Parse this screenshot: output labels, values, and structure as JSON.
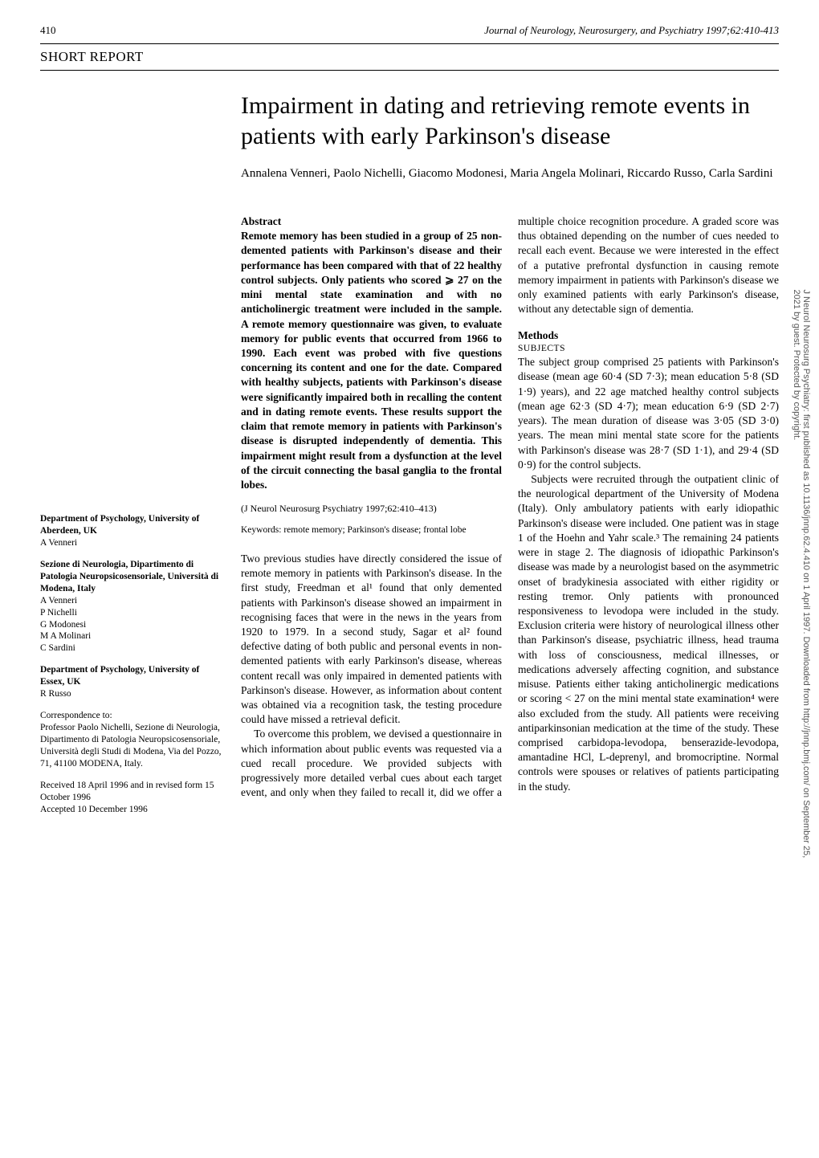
{
  "page_number": "410",
  "journal_citation": "Journal of Neurology, Neurosurgery, and Psychiatry 1997;62:410-413",
  "short_report": "SHORT REPORT",
  "title": "Impairment in dating and retrieving remote events in patients with early Parkinson's disease",
  "authors": "Annalena Venneri, Paolo Nichelli, Giacomo Modonesi, Maria Angela Molinari, Riccardo Russo, Carla Sardini",
  "abstract_head": "Abstract",
  "abstract_body": "Remote memory has been studied in a group of 25 non-demented patients with Parkinson's disease and their performance has been compared with that of 22 healthy control subjects. Only patients who scored ⩾ 27 on the mini mental state examination and with no anticholinergic treatment were included in the sample. A remote memory questionnaire was given, to evaluate memory for public events that occurred from 1966 to 1990. Each event was probed with five questions concerning its content and one for the date. Compared with healthy subjects, patients with Parkinson's disease were significantly impaired both in recalling the content and in dating remote events. These results support the claim that remote memory in patients with Parkinson's disease is disrupted independently of dementia. This impairment might result from a dysfunction at the level of the circuit connecting the basal ganglia to the frontal lobes.",
  "citation_line": "(J Neurol Neurosurg Psychiatry 1997;62:410–413)",
  "keywords": "Keywords: remote memory; Parkinson's disease; frontal lobe",
  "intro_p1": "Two previous studies have directly considered the issue of remote memory in patients with Parkinson's disease. In the first study, Freedman et al¹ found that only demented patients with Parkinson's disease showed an impairment in recognising faces that were in the news in the years from 1920 to 1979. In a second study, Sagar et al² found defective dating of both public and personal events in non-demented patients with early Parkinson's disease, whereas content recall was only impaired in demented patients with Parkinson's disease. However, as information about content was obtained via a recognition task, the testing procedure could have missed a retrieval deficit.",
  "intro_p2": "To overcome this problem, we devised a questionnaire in which information about public events was requested via a cued recall procedure. We provided subjects with progressively more detailed verbal cues about each target event, and only when they failed to recall it, did we offer a multiple choice recognition procedure. A graded score was thus obtained depending on the number of cues needed to recall each event. Because we were interested in the effect of a putative prefrontal dysfunction in causing remote memory impairment in patients with Parkinson's disease we only examined patients with early Parkinson's disease, without any detectable sign of dementia.",
  "methods_head": "Methods",
  "subjects_head": "SUBJECTS",
  "methods_p1": "The subject group comprised 25 patients with Parkinson's disease (mean age 60·4 (SD 7·3); mean education 5·8 (SD 1·9) years), and 22 age matched healthy control subjects (mean age 62·3 (SD 4·7); mean education 6·9 (SD 2·7) years). The mean duration of disease was 3·05 (SD 3·0) years. The mean mini mental state score for the patients with Parkinson's disease was 28·7 (SD 1·1), and 29·4 (SD 0·9) for the control subjects.",
  "methods_p2": "Subjects were recruited through the outpatient clinic of the neurological department of the University of Modena (Italy). Only ambulatory patients with early idiopathic Parkinson's disease were included. One patient was in stage 1 of the Hoehn and Yahr scale.³ The remaining 24 patients were in stage 2. The diagnosis of idiopathic Parkinson's disease was made by a neurologist based on the asymmetric onset of bradykinesia associated with either rigidity or resting tremor. Only patients with pronounced responsiveness to levodopa were included in the study. Exclusion criteria were history of neurological illness other than Parkinson's disease, psychiatric illness, head trauma with loss of consciousness, medical illnesses, or medications adversely affecting cognition, and substance misuse. Patients either taking anticholinergic medications or scoring < 27 on the mini mental state examination⁴ were also excluded from the study. All patients were receiving antiparkinsonian medication at the time of the study. These comprised carbidopa-levodopa, benserazide-levodopa, amantadine HCl, L-deprenyl, and bromocriptine. Normal controls were spouses or relatives of patients participating in the study.",
  "affil1_head": "Department of Psychology, University of Aberdeen, UK",
  "affil1_names": "A Venneri",
  "affil2_head": "Sezione di Neurologia, Dipartimento di Patologia Neuropsicosensoriale, Università di Modena, Italy",
  "affil2_names": "A Venneri\nP Nichelli\nG Modonesi\nM A Molinari\nC Sardini",
  "affil3_head": "Department of Psychology, University of Essex, UK",
  "affil3_names": "R Russo",
  "correspondence": "Correspondence to:\nProfessor Paolo Nichelli, Sezione di Neurologia, Dipartimento di Patologia Neuropsicosensoriale, Università degli Studi di Modena, Via del Pozzo, 71, 41100 MODENA, Italy.",
  "dates": "Received 18 April 1996 and in revised form 15 October 1996\nAccepted 10 December 1996",
  "watermark": "J Neurol Neurosurg Psychiatry: first published as 10.1136/jnnp.62.4.410 on 1 April 1997. Downloaded from http://jnnp.bmj.com/ on September 25, 2021 by guest. Protected by copyright."
}
